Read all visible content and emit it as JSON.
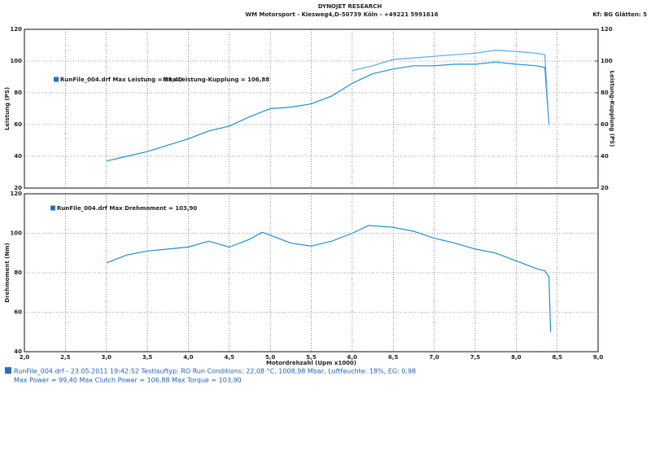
{
  "header": {
    "title": "DYNOJET RESEARCH",
    "subtitle": "WM Motorsport - Kiesweg4,D-50739 Köln - +49221 5991616",
    "settings": "Kf: BG  Glätten: 5"
  },
  "footer": {
    "line1": "RunFile_004.drf - 23.05.2011 19:42:52  Testlauftyp: RO  Run Conditions: 22,08 °C, 1008,98 Mbar,  Luftfeuchte: 18%, EG: 0,98",
    "line2": "Max Power = 99,40  Max Clutch Power = 106,88  Max Torque = 103,90"
  },
  "chart_data": [
    {
      "type": "line",
      "y_label": "Leistung (PS)",
      "y2_label": "Leistung-Kupplung (PS)",
      "x": [
        3.0,
        3.25,
        3.5,
        3.75,
        4.0,
        4.25,
        4.5,
        4.75,
        5.0,
        5.25,
        5.5,
        5.75,
        6.0,
        6.25,
        6.5,
        6.75,
        7.0,
        7.25,
        7.5,
        7.75,
        8.0,
        8.25,
        8.35,
        8.4
      ],
      "series": [
        {
          "name": "RunFile_004.drf Max Leistung = 99,40",
          "color": "#1c8fd2",
          "values": [
            37,
            40,
            43,
            47,
            51,
            56,
            59,
            65,
            70,
            71,
            73,
            78,
            86,
            92,
            95,
            97,
            97,
            98,
            98,
            99.4,
            98,
            97,
            96,
            60
          ]
        },
        {
          "name": "Max Leistung-Kupplung = 106,88",
          "color": "#5aa8dc",
          "axis": "y2",
          "values": [
            null,
            null,
            null,
            null,
            null,
            null,
            null,
            null,
            null,
            null,
            null,
            null,
            94,
            97,
            101,
            102,
            103,
            104,
            105,
            106.88,
            106,
            105,
            104,
            60
          ]
        }
      ],
      "xlim": [
        2.0,
        9.0
      ],
      "ylim": [
        20,
        120
      ],
      "yticks": [
        20,
        40,
        60,
        80,
        100,
        120
      ],
      "y2lim": [
        20,
        120
      ],
      "y2ticks": [
        20,
        40,
        60,
        80,
        100,
        120
      ],
      "grid": true
    },
    {
      "type": "line",
      "y_label": "Drehmoment (Nm)",
      "x_label": "Motordrehzahl (Upm x1000)",
      "x": [
        3.0,
        3.25,
        3.5,
        3.75,
        4.0,
        4.25,
        4.5,
        4.75,
        4.9,
        5.0,
        5.25,
        5.5,
        5.75,
        6.0,
        6.2,
        6.5,
        6.75,
        7.0,
        7.25,
        7.5,
        7.75,
        8.0,
        8.25,
        8.35,
        8.4,
        8.42
      ],
      "series": [
        {
          "name": "RunFile_004.drf Max Drehmoment = 103,90",
          "color": "#1c8fd2",
          "values": [
            85,
            89,
            91,
            92,
            93,
            96,
            93,
            97,
            100.5,
            99,
            95,
            93.5,
            96,
            100,
            103.9,
            103,
            101,
            97.5,
            95,
            92,
            90,
            86,
            82,
            81,
            78,
            50
          ]
        }
      ],
      "xlim": [
        2.0,
        9.0
      ],
      "xticks": [
        {
          "value": 2.0,
          "label": "2,0"
        },
        {
          "value": 2.5,
          "label": "2,5"
        },
        {
          "value": 3.0,
          "label": "3,0"
        },
        {
          "value": 3.5,
          "label": "3,5"
        },
        {
          "value": 4.0,
          "label": "4,0"
        },
        {
          "value": 4.5,
          "label": "4,5"
        },
        {
          "value": 5.0,
          "label": "5,0"
        },
        {
          "value": 5.5,
          "label": "5,5"
        },
        {
          "value": 6.0,
          "label": "6,0"
        },
        {
          "value": 6.5,
          "label": "6,5"
        },
        {
          "value": 7.0,
          "label": "7,0"
        },
        {
          "value": 7.5,
          "label": "7,5"
        },
        {
          "value": 8.0,
          "label": "8,0"
        },
        {
          "value": 8.5,
          "label": "8,5"
        },
        {
          "value": 9.0,
          "label": "9,0"
        }
      ],
      "ylim": [
        40,
        120
      ],
      "yticks": [
        40,
        60,
        80,
        100,
        120
      ],
      "grid": true
    }
  ]
}
